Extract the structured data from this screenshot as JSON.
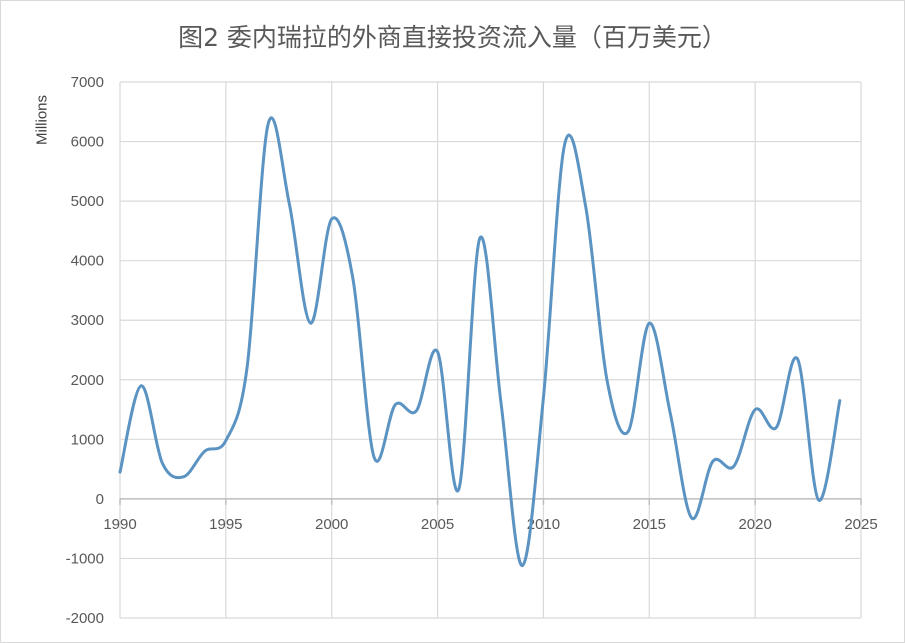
{
  "chart_data": {
    "type": "line",
    "title": "图2 委内瑞拉的外商直接投资流入量（百万美元）",
    "ylabel": "Millions",
    "xlabel": "",
    "xlim": [
      1990,
      2025
    ],
    "ylim": [
      -2000,
      7000
    ],
    "x_ticks": [
      "1990",
      "1995",
      "2000",
      "2005",
      "2010",
      "2015",
      "2020",
      "2025"
    ],
    "y_ticks": [
      "7000",
      "6000",
      "5000",
      "4000",
      "3000",
      "2000",
      "1000",
      "0",
      "-1000",
      "-2000"
    ],
    "grid": true,
    "smooth": true,
    "line_color": "#5b93c2",
    "series": [
      {
        "x": [
          1990,
          1991,
          1992,
          1993,
          1994,
          1995,
          1996,
          1997,
          1998,
          1999,
          2000,
          2001,
          2002,
          2003,
          2004,
          2005,
          2006,
          2007,
          2008,
          2009,
          2010,
          2011,
          2012,
          2013,
          2014,
          2015,
          2016,
          2017,
          2018,
          2019,
          2020,
          2021,
          2022,
          2023,
          2024
        ],
        "values": [
          450,
          1900,
          600,
          370,
          800,
          980,
          2200,
          6300,
          4950,
          2950,
          4700,
          3700,
          700,
          1580,
          1480,
          2470,
          160,
          4380,
          1600,
          -1120,
          1700,
          5950,
          4900,
          2000,
          1130,
          2950,
          1420,
          -320,
          630,
          550,
          1500,
          1200,
          2350,
          -20,
          1650
        ]
      }
    ]
  }
}
